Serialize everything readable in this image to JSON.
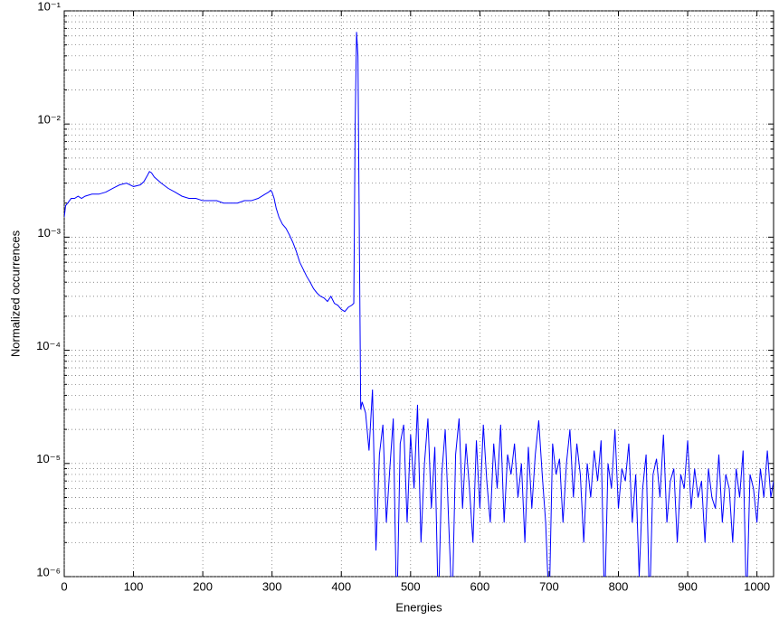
{
  "chart_data": {
    "type": "line",
    "xlabel": "Energies",
    "ylabel": "Normalized occurrences",
    "xlim": [
      0,
      1024
    ],
    "xticks": [
      0,
      100,
      200,
      300,
      400,
      500,
      600,
      700,
      800,
      900,
      1000
    ],
    "ylim": [
      1e-06,
      0.1
    ],
    "ylog": true,
    "grid": true,
    "minor_grid": true,
    "yticks": [
      {
        "value": 1e-06,
        "label": "10⁻⁶"
      },
      {
        "value": 1e-05,
        "label": "10⁻⁵"
      },
      {
        "value": 0.0001,
        "label": "10⁻⁴"
      },
      {
        "value": 0.001,
        "label": "10⁻³"
      },
      {
        "value": 0.01,
        "label": "10⁻²"
      },
      {
        "value": 0.1,
        "label": "10⁻¹"
      }
    ],
    "color": "#0000ff",
    "x": [
      0,
      2,
      5,
      10,
      15,
      20,
      25,
      30,
      40,
      50,
      60,
      70,
      80,
      90,
      100,
      110,
      115,
      120,
      123,
      126,
      130,
      140,
      150,
      160,
      170,
      180,
      190,
      200,
      210,
      220,
      230,
      240,
      250,
      260,
      270,
      280,
      290,
      295,
      298,
      300,
      303,
      306,
      310,
      315,
      320,
      325,
      330,
      335,
      340,
      345,
      350,
      355,
      360,
      365,
      370,
      375,
      380,
      385,
      390,
      395,
      400,
      405,
      410,
      415,
      418,
      420,
      422,
      424,
      426,
      428,
      430,
      435,
      440,
      445,
      450,
      455,
      460,
      465,
      470,
      475,
      480,
      485,
      490,
      495,
      500,
      505,
      510,
      515,
      520,
      525,
      530,
      535,
      540,
      545,
      550,
      555,
      560,
      565,
      570,
      575,
      580,
      585,
      590,
      595,
      600,
      605,
      610,
      615,
      620,
      625,
      630,
      635,
      640,
      645,
      650,
      655,
      660,
      665,
      670,
      675,
      680,
      685,
      690,
      695,
      700,
      705,
      710,
      715,
      720,
      725,
      730,
      735,
      740,
      745,
      750,
      755,
      760,
      765,
      770,
      775,
      780,
      785,
      790,
      795,
      800,
      805,
      810,
      815,
      820,
      825,
      830,
      835,
      840,
      845,
      850,
      855,
      860,
      865,
      870,
      875,
      880,
      885,
      890,
      895,
      900,
      905,
      910,
      915,
      920,
      925,
      930,
      935,
      940,
      945,
      950,
      955,
      960,
      965,
      970,
      975,
      980,
      985,
      990,
      995,
      1000,
      1005,
      1010,
      1015,
      1020,
      1024
    ],
    "values": [
      0.0015,
      0.0019,
      0.002,
      0.0022,
      0.0022,
      0.0023,
      0.0022,
      0.0023,
      0.0024,
      0.0024,
      0.0025,
      0.0027,
      0.0029,
      0.003,
      0.0028,
      0.0029,
      0.0031,
      0.0035,
      0.0038,
      0.0037,
      0.0034,
      0.003,
      0.0027,
      0.0025,
      0.0023,
      0.0022,
      0.0022,
      0.0021,
      0.0021,
      0.0021,
      0.002,
      0.002,
      0.002,
      0.0021,
      0.0021,
      0.0022,
      0.0024,
      0.0025,
      0.0026,
      0.0025,
      0.0022,
      0.0018,
      0.0015,
      0.0013,
      0.0012,
      0.00105,
      0.0009,
      0.00075,
      0.0006,
      0.00052,
      0.00045,
      0.0004,
      0.00035,
      0.00032,
      0.0003,
      0.00029,
      0.00027,
      0.0003,
      0.00026,
      0.00025,
      0.00023,
      0.00022,
      0.00024,
      0.00025,
      0.00026,
      0.01,
      0.065,
      0.04,
      0.001,
      3e-05,
      3.5e-05,
      2.8e-05,
      1.3e-05,
      4.5e-05,
      1.7e-06,
      1.2e-05,
      2.2e-05,
      3e-06,
      9e-06,
      2.5e-05,
      4e-07,
      1.5e-05,
      2.2e-05,
      3e-06,
      1.8e-05,
      6e-06,
      3.3e-05,
      2e-06,
      1e-05,
      2.5e-05,
      4e-06,
      1.4e-05,
      5e-07,
      8e-06,
      2e-05,
      3e-06,
      5e-07,
      1.2e-05,
      2.5e-05,
      4e-06,
      1.5e-05,
      6e-06,
      2e-06,
      1.6e-05,
      4e-06,
      2.2e-05,
      7e-06,
      3e-06,
      1.5e-05,
      6e-06,
      2.2e-05,
      3e-06,
      1.2e-05,
      8e-06,
      1.5e-05,
      5e-06,
      1e-05,
      2e-06,
      1.4e-05,
      4e-06,
      1.2e-05,
      2.4e-05,
      8e-06,
      3e-06,
      5e-07,
      1.5e-05,
      8e-06,
      1.1e-05,
      3e-06,
      1e-05,
      2e-05,
      5e-06,
      1.5e-05,
      8e-06,
      2e-06,
      1e-05,
      5e-06,
      1.3e-05,
      7e-06,
      1.6e-05,
      5e-07,
      1e-05,
      6e-06,
      2e-05,
      4e-06,
      9e-06,
      7e-06,
      1.5e-05,
      3e-06,
      8e-06,
      1e-06,
      6e-06,
      1.2e-05,
      5e-07,
      8e-06,
      1.1e-05,
      5e-06,
      1.8e-05,
      3e-06,
      7e-06,
      9e-06,
      2e-06,
      8e-06,
      6e-06,
      1.6e-05,
      4e-06,
      9e-06,
      5e-06,
      7e-06,
      2e-06,
      9e-06,
      5e-06,
      4e-06,
      1.2e-05,
      3e-06,
      8e-06,
      6e-06,
      2e-06,
      9e-06,
      5e-06,
      1.3e-05,
      5e-07,
      8e-06,
      6e-06,
      3e-06,
      9e-06,
      5e-06,
      1.3e-05,
      5e-06,
      7e-06
    ]
  }
}
